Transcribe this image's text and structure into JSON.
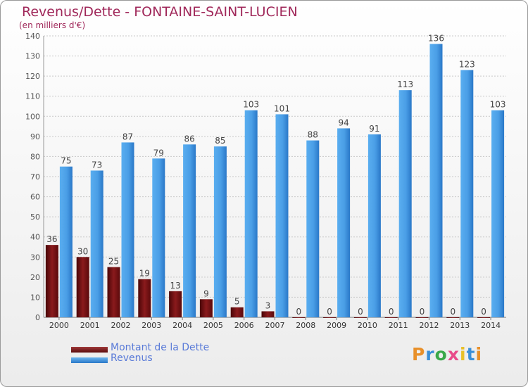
{
  "title": "Revenus/Dette - FONTAINE-SAINT-LUCIEN",
  "subtitle": "(en milliers d'€)",
  "logo": {
    "text": "Proxiti"
  },
  "colors": {
    "dette": "#7a1214",
    "revenus": "#3f8fdd",
    "grid": "#c8c8c8",
    "title": "#a0285a",
    "legend_text": "#5a7bd8"
  },
  "chart_data": {
    "type": "bar",
    "categories": [
      "2000",
      "2001",
      "2002",
      "2003",
      "2004",
      "2005",
      "2006",
      "2007",
      "2008",
      "2009",
      "2010",
      "2011",
      "2012",
      "2013",
      "2014"
    ],
    "series": [
      {
        "name": "Montant de la Dette",
        "values": [
          36,
          30,
          25,
          19,
          13,
          9,
          5,
          3,
          0,
          0,
          0,
          0,
          0,
          0,
          0
        ]
      },
      {
        "name": "Revenus",
        "values": [
          75,
          73,
          87,
          79,
          86,
          85,
          103,
          101,
          88,
          94,
          91,
          113,
          136,
          123,
          103
        ]
      }
    ],
    "yticks": [
      0,
      10,
      20,
      30,
      40,
      50,
      60,
      70,
      80,
      90,
      100,
      110,
      120,
      130,
      140
    ],
    "ylim": [
      0,
      140
    ],
    "grid": true,
    "legend": "bottom-left"
  }
}
